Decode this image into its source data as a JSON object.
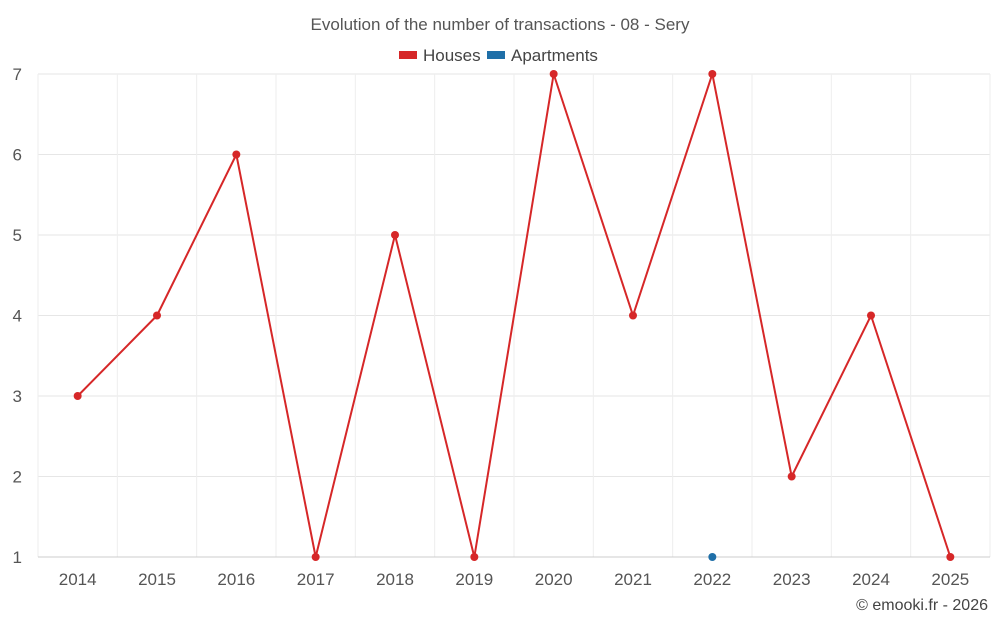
{
  "chart_data": {
    "type": "line",
    "title": "Evolution of the number of transactions - 08 - Sery",
    "xlabel": "",
    "ylabel": "",
    "categories": [
      "2014",
      "2015",
      "2016",
      "2017",
      "2018",
      "2019",
      "2020",
      "2021",
      "2022",
      "2023",
      "2024",
      "2025"
    ],
    "ylim": [
      1,
      7
    ],
    "yticks": [
      1,
      2,
      3,
      4,
      5,
      6,
      7
    ],
    "grid": true,
    "legend_position": "top-center",
    "series": [
      {
        "name": "Houses",
        "color": "#d62728",
        "values": [
          3,
          4,
          6,
          1,
          5,
          1,
          7,
          4,
          7,
          2,
          4,
          1
        ]
      },
      {
        "name": "Apartments",
        "color": "#1f6fa8",
        "values": [
          null,
          null,
          null,
          null,
          null,
          null,
          null,
          null,
          1,
          null,
          null,
          null
        ]
      }
    ]
  },
  "credit": "© emooki.fr - 2026"
}
